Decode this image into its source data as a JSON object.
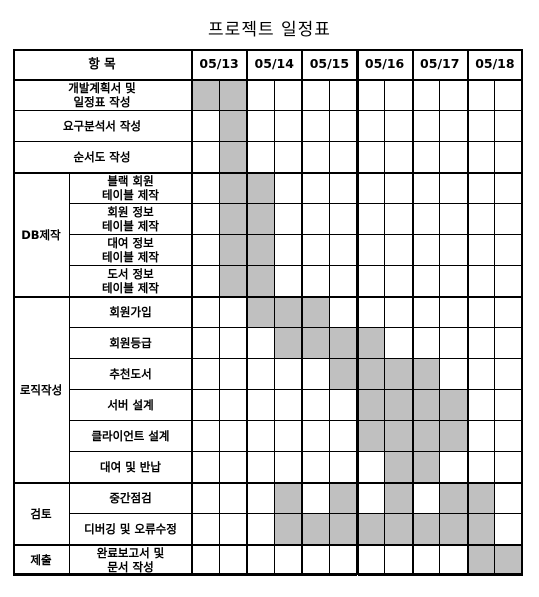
{
  "title": "프로젝트 일정표",
  "header": {
    "item_label": "항 목",
    "dates": [
      "05/13",
      "05/14",
      "05/15",
      "05/16",
      "05/17",
      "05/18"
    ]
  },
  "groups": [
    {
      "name": "",
      "rows": [
        {
          "label": "개발계획서 및\n일정표 작성",
          "shaded": [
            0,
            1
          ]
        }
      ]
    },
    {
      "name": "",
      "rows": [
        {
          "label": "요구분석서 작성",
          "shaded": [
            1
          ]
        }
      ]
    },
    {
      "name": "",
      "rows": [
        {
          "label": "순서도 작성",
          "shaded": [
            1
          ]
        }
      ]
    },
    {
      "name": "DB제작",
      "rows": [
        {
          "label": "블랙 회원\n테이블 제작",
          "shaded": [
            1,
            2
          ]
        },
        {
          "label": "회원 정보\n테이블 제작",
          "shaded": [
            1,
            2
          ]
        },
        {
          "label": "대여 정보\n테이블 제작",
          "shaded": [
            1,
            2
          ]
        },
        {
          "label": "도서 정보\n테이블 제작",
          "shaded": [
            1,
            2
          ]
        }
      ]
    },
    {
      "name": "로직작성",
      "rows": [
        {
          "label": "회원가입",
          "shaded": [
            2,
            3,
            4
          ]
        },
        {
          "label": "회원등급",
          "shaded": [
            3,
            4,
            5,
            6
          ]
        },
        {
          "label": "추천도서",
          "shaded": [
            5,
            6,
            7,
            8
          ]
        },
        {
          "label": "서버 설계",
          "shaded": [
            6,
            7,
            8,
            9
          ]
        },
        {
          "label": "클라이언트 설계",
          "shaded": [
            6,
            7,
            8,
            9
          ]
        },
        {
          "label": "대여 및 반납",
          "shaded": [
            7,
            8
          ]
        }
      ]
    },
    {
      "name": "검토",
      "rows": [
        {
          "label": "중간점검",
          "shaded": [
            3,
            5,
            7,
            9,
            10
          ]
        },
        {
          "label": "디버깅 및 오류수정",
          "shaded": [
            3,
            4,
            5,
            6,
            7,
            8,
            9,
            10
          ]
        }
      ]
    },
    {
      "name": "제출",
      "rows": [
        {
          "label": "완료보고서 및\n문서 작성",
          "shaded": [
            10,
            11
          ]
        }
      ]
    }
  ]
}
